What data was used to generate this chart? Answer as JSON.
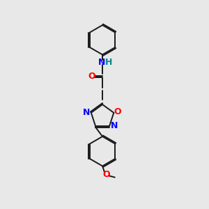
{
  "bg_color": "#e8e8e8",
  "bond_color": "#1a1a1a",
  "N_color": "#0000ff",
  "O_color": "#ff0000",
  "H_color": "#008b8b",
  "font_size": 8.5,
  "line_width": 1.4,
  "figsize": [
    3.0,
    3.0
  ],
  "dpi": 100,
  "xlim": [
    0,
    10
  ],
  "ylim": [
    0,
    10
  ]
}
